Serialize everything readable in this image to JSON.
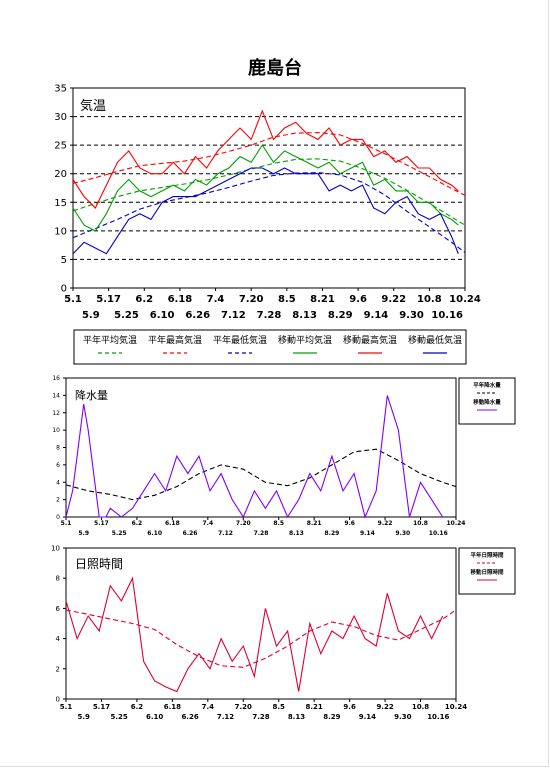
{
  "page": {
    "title": "鹿島台"
  },
  "colors": {
    "heibanAvg": "#00a000",
    "heibanMax": "#ff0000",
    "heibanMin": "#0000cc",
    "moveAvg": "#00a000",
    "moveMax": "#ff0000",
    "moveMin": "#0000cc",
    "precip": "#8000ff",
    "precipNormal": "#000000",
    "sun": "#e00030",
    "sunNormal": "#e00030"
  },
  "ticks_main_upper": [
    "5.1",
    "5.17",
    "6.2",
    "6.18",
    "7.4",
    "7.20",
    "8.5",
    "8.21",
    "9.6",
    "9.22",
    "10.8",
    "10.24"
  ],
  "ticks_main_lower": [
    "5.9",
    "5.25",
    "6.10",
    "6.26",
    "7.12",
    "7.28",
    "8.13",
    "8.29",
    "9.14",
    "9.30",
    "10.16"
  ],
  "ticks_small_upper": [
    "5.1",
    "5.17",
    "6.2",
    "6.18",
    "7.4",
    "7.20",
    "8.5",
    "8.21",
    "9.6",
    "9.22",
    "10.8",
    "10.24"
  ],
  "ticks_small_lower": [
    "5.9",
    "5.25",
    "6.10",
    "6.26",
    "7.12",
    "7.28",
    "8.13",
    "8.29",
    "9.14",
    "9.30",
    "10.16"
  ],
  "chart_data": [
    {
      "type": "line",
      "title": "気温",
      "ylim": [
        0,
        35
      ],
      "yticks": [
        0,
        5,
        10,
        15,
        20,
        25,
        30,
        35
      ],
      "grid": "dashed horizontal",
      "legend": {
        "labels": [
          "平年平均気温",
          "平年最高気温",
          "平年最低気温",
          "移動平均気温",
          "移動最高気温",
          "移動最低気温"
        ]
      },
      "series": [
        {
          "name": "平年平均気温",
          "style": "dashed",
          "color": "#00a000",
          "x": [
            0,
            10,
            20,
            30,
            40,
            50,
            60,
            70,
            80,
            90,
            100,
            110,
            120,
            130,
            140,
            150,
            160,
            170,
            176
          ],
          "values": [
            13.5,
            14.8,
            16.0,
            17.0,
            17.6,
            18.2,
            18.9,
            19.8,
            20.8,
            21.8,
            22.5,
            22.6,
            22.2,
            20.9,
            19.2,
            17.1,
            14.8,
            12.4,
            11.0
          ]
        },
        {
          "name": "平年最高気温",
          "style": "dashed",
          "color": "#ff0000",
          "x": [
            0,
            10,
            20,
            30,
            40,
            50,
            60,
            70,
            80,
            90,
            100,
            110,
            120,
            130,
            140,
            150,
            160,
            170,
            176
          ],
          "values": [
            18.3,
            19.3,
            20.4,
            21.4,
            21.8,
            22.2,
            22.9,
            23.9,
            25.0,
            26.4,
            27.1,
            27.2,
            26.8,
            25.3,
            23.5,
            21.5,
            19.5,
            17.4,
            16.2
          ]
        },
        {
          "name": "平年最低気温",
          "style": "dashed",
          "color": "#0000cc",
          "x": [
            0,
            10,
            20,
            30,
            40,
            50,
            60,
            70,
            80,
            90,
            100,
            110,
            120,
            130,
            140,
            150,
            160,
            170,
            176
          ],
          "values": [
            8.8,
            10.4,
            12.0,
            13.8,
            15.0,
            15.8,
            16.6,
            17.6,
            18.7,
            19.7,
            20.1,
            20.2,
            19.8,
            18.5,
            16.3,
            13.4,
            10.7,
            8.0,
            6.2
          ]
        },
        {
          "name": "移動平均気温",
          "style": "solid",
          "color": "#00a000",
          "x": [
            0,
            5,
            10,
            15,
            20,
            25,
            30,
            35,
            40,
            45,
            50,
            55,
            60,
            65,
            70,
            75,
            80,
            85,
            90,
            95,
            100,
            105,
            110,
            115,
            120,
            125,
            130,
            135,
            140,
            145,
            150,
            155,
            160,
            165,
            170,
            173
          ],
          "values": [
            14,
            11,
            10,
            13,
            17,
            19,
            17,
            16,
            17,
            18,
            17,
            19,
            18,
            20,
            21,
            23,
            22,
            25,
            22,
            24,
            23,
            22,
            21,
            22,
            20,
            21,
            22,
            18,
            19,
            17,
            17,
            15,
            15,
            13,
            12,
            11
          ]
        },
        {
          "name": "移動最高気温",
          "style": "solid",
          "color": "#ff0000",
          "x": [
            0,
            5,
            10,
            15,
            20,
            25,
            30,
            35,
            40,
            45,
            50,
            55,
            60,
            65,
            70,
            75,
            80,
            85,
            90,
            95,
            100,
            105,
            110,
            115,
            120,
            125,
            130,
            135,
            140,
            145,
            150,
            155,
            160,
            165,
            170,
            173
          ],
          "values": [
            19,
            16,
            14,
            18,
            22,
            24,
            21,
            20,
            20,
            22,
            20,
            23,
            21,
            24,
            26,
            28,
            26,
            31,
            26,
            28,
            29,
            27,
            26,
            28,
            25,
            26,
            26,
            23,
            24,
            22,
            23,
            21,
            21,
            19,
            18,
            17
          ]
        },
        {
          "name": "移動最低気温",
          "style": "solid",
          "color": "#0000cc",
          "x": [
            0,
            5,
            10,
            15,
            20,
            25,
            30,
            35,
            40,
            45,
            50,
            55,
            60,
            65,
            70,
            75,
            80,
            85,
            90,
            95,
            100,
            105,
            110,
            115,
            120,
            125,
            130,
            135,
            140,
            145,
            150,
            155,
            160,
            165,
            170,
            173
          ],
          "values": [
            6,
            8,
            7,
            6,
            9,
            12,
            13,
            12,
            15,
            16,
            16,
            16,
            17,
            18,
            19,
            20,
            21,
            21,
            20,
            21,
            20,
            20,
            20,
            17,
            18,
            17,
            18,
            14,
            13,
            15,
            16,
            13,
            12,
            13,
            9,
            6
          ]
        }
      ]
    },
    {
      "type": "line",
      "title": "降水量",
      "ylim": [
        0,
        16
      ],
      "yticks": [
        0,
        2,
        4,
        6,
        8,
        10,
        12,
        14,
        16
      ],
      "legend": {
        "labels": [
          "平年降水量",
          "移動降水量"
        ]
      },
      "series": [
        {
          "name": "平年降水量",
          "style": "dashed",
          "color": "#000000",
          "x": [
            0,
            10,
            20,
            30,
            40,
            50,
            60,
            70,
            80,
            90,
            100,
            110,
            120,
            130,
            140,
            150,
            160,
            170,
            176
          ],
          "values": [
            3.7,
            3.0,
            2.6,
            2.0,
            2.5,
            3.5,
            5.0,
            6.0,
            5.5,
            4.0,
            3.6,
            4.5,
            6.0,
            7.5,
            7.8,
            6.5,
            5.0,
            4.0,
            3.5
          ]
        },
        {
          "name": "移動降水量",
          "style": "solid",
          "color": "#8000ff",
          "x": [
            0,
            3,
            5,
            8,
            10,
            13,
            15,
            18,
            20,
            25,
            30,
            35,
            40,
            45,
            50,
            55,
            60,
            65,
            70,
            75,
            80,
            85,
            90,
            95,
            100,
            105,
            110,
            115,
            120,
            125,
            130,
            135,
            140,
            145,
            150,
            155,
            160,
            165,
            170
          ],
          "values": [
            0,
            3,
            7,
            13,
            10,
            4,
            0,
            0,
            1,
            0,
            1,
            3,
            5,
            3,
            7,
            5,
            7,
            3,
            5,
            2,
            0,
            3,
            1,
            3,
            0,
            2,
            5,
            3,
            7,
            3,
            5,
            0,
            3,
            14,
            10,
            0,
            4,
            2,
            0
          ]
        }
      ]
    },
    {
      "type": "line",
      "title": "日照時間",
      "ylim": [
        0,
        10
      ],
      "yticks": [
        0,
        2,
        4,
        6,
        8,
        10
      ],
      "legend": {
        "labels": [
          "平年日照時間",
          "移動日照時間"
        ]
      },
      "series": [
        {
          "name": "平年日照時間",
          "style": "dashed",
          "color": "#e00030",
          "x": [
            0,
            10,
            20,
            30,
            40,
            50,
            60,
            70,
            80,
            90,
            100,
            110,
            120,
            130,
            140,
            150,
            160,
            170,
            176
          ],
          "values": [
            5.9,
            5.6,
            5.3,
            5.0,
            4.6,
            3.6,
            2.8,
            2.2,
            2.1,
            2.7,
            3.5,
            4.5,
            5.1,
            4.8,
            4.2,
            3.9,
            4.6,
            5.3,
            5.9
          ]
        },
        {
          "name": "移動日照時間",
          "style": "solid",
          "color": "#e00030",
          "x": [
            0,
            5,
            10,
            15,
            20,
            25,
            30,
            35,
            40,
            45,
            50,
            55,
            60,
            65,
            70,
            75,
            80,
            85,
            90,
            95,
            100,
            105,
            110,
            115,
            120,
            125,
            130,
            135,
            140,
            145,
            150,
            155,
            160,
            165,
            170
          ],
          "values": [
            6.5,
            4.0,
            5.5,
            4.5,
            7.5,
            6.5,
            8.0,
            2.5,
            1.2,
            0.8,
            0.5,
            2.0,
            3.0,
            2.0,
            4.0,
            2.5,
            3.5,
            1.5,
            6.0,
            3.5,
            4.5,
            0.5,
            5.0,
            3.0,
            4.5,
            4.0,
            5.5,
            4.0,
            3.5,
            7.0,
            4.5,
            4.0,
            5.5,
            4.0,
            5.5
          ]
        }
      ]
    }
  ]
}
